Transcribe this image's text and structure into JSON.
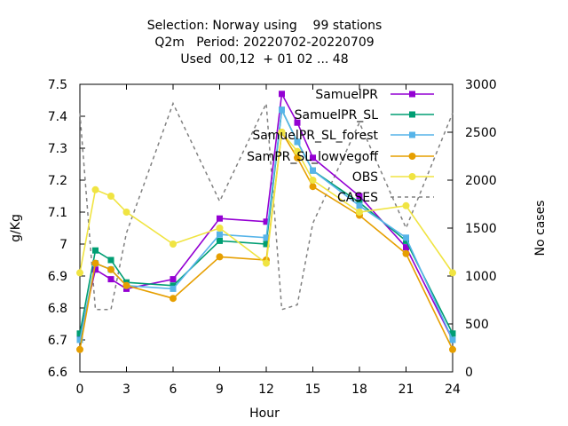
{
  "chart_data": {
    "type": "line",
    "title_lines": [
      "Selection: Norway using    99 stations",
      "Q2m   Period: 20220702-20220709",
      "Used  00,12  + 01 02 ... 48"
    ],
    "xlabel": "Hour",
    "ylabel": "g/Kg",
    "y2label": "No cases",
    "xlim": [
      0,
      24
    ],
    "ylim": [
      6.6,
      7.5
    ],
    "y2lim": [
      0,
      3000
    ],
    "xticks": [
      0,
      3,
      6,
      9,
      12,
      15,
      18,
      21,
      24
    ],
    "yticks": [
      6.6,
      6.7,
      6.8,
      6.9,
      7.0,
      7.1,
      7.2,
      7.3,
      7.4,
      7.5
    ],
    "ytick_labels": [
      "6.6",
      "6.7",
      "6.8",
      "6.9",
      "7",
      "7.1",
      "7.2",
      "7.3",
      "7.4",
      "7.5"
    ],
    "y2ticks": [
      0,
      500,
      1000,
      1500,
      2000,
      2500,
      3000
    ],
    "y2tick_labels": [
      "0",
      "500",
      "1000",
      "1500",
      "2000",
      "2500",
      "3000"
    ],
    "legend_position": "top-right",
    "series": [
      {
        "name": "SamuelPR",
        "legend_label": "SamuelPR",
        "color": "#9400d3",
        "marker": "square",
        "axis": "y",
        "x": [
          0,
          1,
          2,
          3,
          6,
          9,
          12,
          13,
          14,
          15,
          18,
          21,
          24
        ],
        "y": [
          6.71,
          6.92,
          6.89,
          6.86,
          6.89,
          7.08,
          7.07,
          7.47,
          7.38,
          7.27,
          7.15,
          6.99,
          6.7
        ]
      },
      {
        "name": "SamuelPR_SL",
        "legend_label": "SamuelPR_SL",
        "color": "#009e73",
        "marker": "square",
        "axis": "y",
        "x": [
          0,
          1,
          2,
          3,
          6,
          9,
          12,
          13,
          14,
          15,
          18,
          21,
          24
        ],
        "y": [
          6.72,
          6.98,
          6.95,
          6.88,
          6.87,
          7.01,
          7.0,
          7.42,
          7.32,
          7.23,
          7.13,
          7.01,
          6.72
        ]
      },
      {
        "name": "SamuelPR_SL_forest",
        "legend_label": "SamuelPR_SL_forest",
        "color": "#56b4e9",
        "marker": "square",
        "axis": "y",
        "x": [
          0,
          1,
          2,
          3,
          6,
          9,
          12,
          13,
          14,
          15,
          18,
          21,
          24
        ],
        "y": [
          6.7,
          6.94,
          6.92,
          6.87,
          6.86,
          7.03,
          7.02,
          7.42,
          7.32,
          7.23,
          7.12,
          7.02,
          6.7
        ]
      },
      {
        "name": "SamPR_SL_lowvegoff",
        "legend_label": "SamPR_SL_lowvegoff",
        "color": "#e69f00",
        "marker": "circle",
        "axis": "y",
        "x": [
          0,
          1,
          2,
          3,
          6,
          9,
          12,
          13,
          14,
          15,
          18,
          21,
          24
        ],
        "y": [
          6.67,
          6.94,
          6.92,
          6.87,
          6.83,
          6.96,
          6.95,
          7.35,
          7.27,
          7.18,
          7.09,
          6.97,
          6.67
        ]
      },
      {
        "name": "OBS",
        "legend_label": "OBS",
        "color": "#f0e442",
        "marker": "circle",
        "axis": "y",
        "x": [
          0,
          1,
          2,
          3,
          6,
          9,
          12,
          13,
          14,
          15,
          18,
          21,
          24
        ],
        "y": [
          6.91,
          7.17,
          7.15,
          7.1,
          7.0,
          7.05,
          6.94,
          7.35,
          7.29,
          7.2,
          7.1,
          7.12,
          6.91
        ]
      },
      {
        "name": "CASES",
        "legend_label": "CASES",
        "color": "#808080",
        "marker": "none",
        "dashed": true,
        "axis": "y2",
        "x": [
          0,
          1,
          2,
          3,
          6,
          9,
          12,
          13,
          14,
          15,
          18,
          21,
          24
        ],
        "y": [
          2700,
          650,
          650,
          1450,
          2800,
          1780,
          2800,
          650,
          700,
          1550,
          2600,
          1500,
          2700
        ]
      }
    ]
  }
}
